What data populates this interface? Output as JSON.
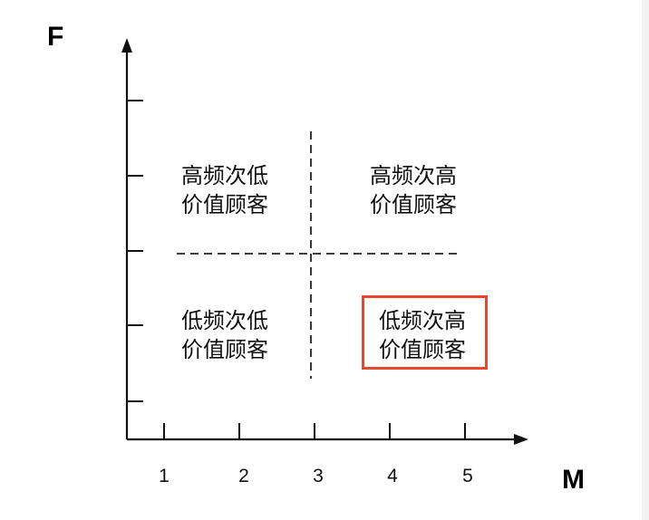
{
  "axes": {
    "y_label": "F",
    "x_label": "M",
    "x_ticks": [
      "1",
      "2",
      "3",
      "4",
      "5"
    ]
  },
  "quadrants": {
    "top_left": {
      "line1": "高频次低",
      "line2": "价值顾客"
    },
    "top_right": {
      "line1": "高频次高",
      "line2": "价值顾客"
    },
    "bottom_left": {
      "line1": "低频次低",
      "line2": "价值顾客"
    },
    "bottom_right": {
      "line1": "低频次高",
      "line2": "价值顾客",
      "highlighted": true
    }
  },
  "colors": {
    "axis": "#111111",
    "highlight": "#e8472e",
    "background": "#ffffff"
  }
}
